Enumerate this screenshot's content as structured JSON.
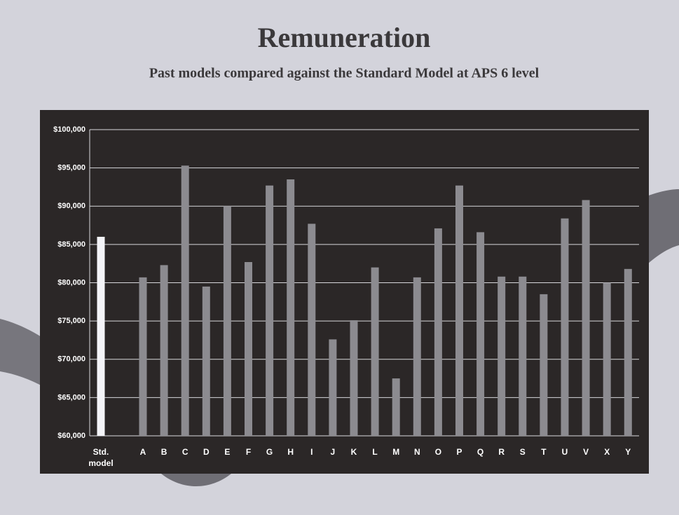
{
  "chart_data": {
    "type": "bar",
    "title": "Remuneration",
    "subtitle": "Past models compared against the Standard Model at APS 6 level",
    "categories": [
      "Std. model",
      "A",
      "B",
      "C",
      "D",
      "E",
      "F",
      "G",
      "H",
      "I",
      "J",
      "K",
      "L",
      "M",
      "N",
      "O",
      "P",
      "Q",
      "R",
      "S",
      "T",
      "U",
      "V",
      "X",
      "Y"
    ],
    "values": [
      86000,
      80700,
      82300,
      95300,
      79500,
      90000,
      82700,
      92700,
      93500,
      87700,
      72600,
      75100,
      82000,
      67500,
      80700,
      87100,
      92700,
      86600,
      80800,
      80800,
      78500,
      88400,
      90800,
      80000,
      81800
    ],
    "colors": [
      "#f4f4f8",
      "#8c8b90",
      "#8c8b90",
      "#8c8b90",
      "#8c8b90",
      "#8c8b90",
      "#8c8b90",
      "#8c8b90",
      "#8c8b90",
      "#8c8b90",
      "#8c8b90",
      "#8c8b90",
      "#8c8b90",
      "#8c8b90",
      "#8c8b90",
      "#8c8b90",
      "#8c8b90",
      "#8c8b90",
      "#8c8b90",
      "#8c8b90",
      "#8c8b90",
      "#8c8b90",
      "#8c8b90",
      "#8c8b90",
      "#8c8b90"
    ],
    "ylim": [
      60000,
      100000
    ],
    "yticks": [
      {
        "value": 60000,
        "label": "$60,000"
      },
      {
        "value": 65000,
        "label": "$65,000"
      },
      {
        "value": 70000,
        "label": "$70,000"
      },
      {
        "value": 75000,
        "label": "$75,000"
      },
      {
        "value": 80000,
        "label": "$80,000"
      },
      {
        "value": 85000,
        "label": "$85,000"
      },
      {
        "value": 90000,
        "label": "$90,000"
      },
      {
        "value": 95000,
        "label": "$95,000"
      },
      {
        "value": 100000,
        "label": "$100,000"
      }
    ],
    "grid": true
  }
}
